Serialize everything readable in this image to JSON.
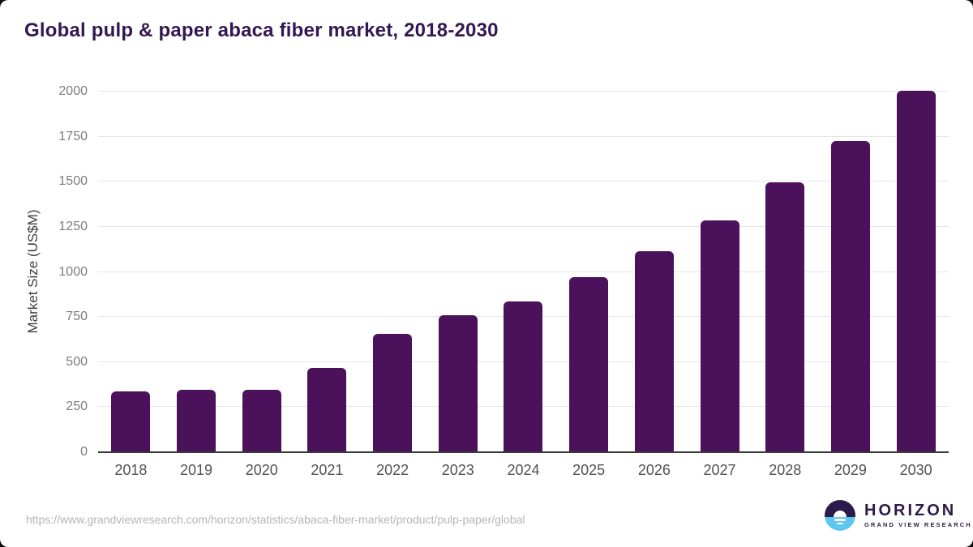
{
  "page": {
    "title": "Global pulp & paper abaca fiber market, 2018-2030",
    "source_url": "https://www.grandviewresearch.com/horizon/statistics/abaca-fiber-market/product/pulp-paper/global"
  },
  "logo": {
    "icon": "horizon-sunrise-icon",
    "name": "HORIZON",
    "subtitle": "GRAND VIEW RESEARCH"
  },
  "chart_data": {
    "type": "bar",
    "title": "Global pulp & paper abaca fiber market, 2018-2030",
    "categories": [
      "2018",
      "2019",
      "2020",
      "2021",
      "2022",
      "2023",
      "2024",
      "2025",
      "2026",
      "2027",
      "2028",
      "2029",
      "2030"
    ],
    "values": [
      338,
      348,
      345,
      468,
      655,
      761,
      838,
      969,
      1117,
      1287,
      1495,
      1728,
      2006
    ],
    "xlabel": "",
    "ylabel": "Market Size (US$M)",
    "ylim": [
      0,
      2000
    ],
    "yticks": [
      0,
      250,
      500,
      750,
      1000,
      1250,
      1500,
      1750,
      2000
    ],
    "grid": "horizontal",
    "legend_position": "none",
    "bar_color": "#4b115b"
  },
  "colors": {
    "title_text": "#321753",
    "bar_fill": "#4b115b",
    "axis_line": "#3b3b3b",
    "gridline": "#e6e6e6",
    "y_tick_text": "#7d7d7d",
    "x_tick_text": "#515151",
    "source_url_text": "#b5b5b5",
    "logo_purple": "#2b1b4d",
    "logo_blue": "#5cc6f1"
  }
}
